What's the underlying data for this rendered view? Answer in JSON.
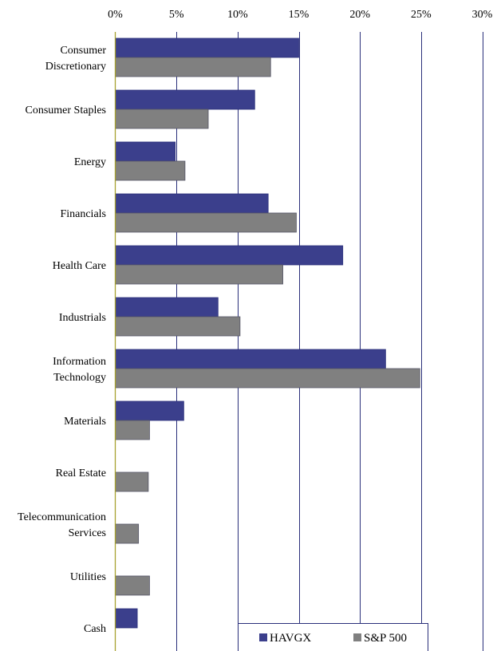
{
  "chart_data": {
    "type": "bar",
    "orientation": "horizontal",
    "categories": [
      [
        "Consumer",
        "Discretionary"
      ],
      [
        "Consumer Staples"
      ],
      [
        "Energy"
      ],
      [
        "Financials"
      ],
      [
        "Health Care"
      ],
      [
        "Industrials"
      ],
      [
        "Information",
        "Technology"
      ],
      [
        "Materials"
      ],
      [
        "Real Estate"
      ],
      [
        "Telecommunication",
        "Services"
      ],
      [
        "Utilities"
      ],
      [
        "Cash"
      ]
    ],
    "series": [
      {
        "name": "HAVGX",
        "color": "#3b3f8c",
        "values": [
          15.0,
          11.4,
          4.9,
          12.5,
          18.6,
          8.4,
          22.1,
          5.6,
          null,
          null,
          null,
          1.8
        ]
      },
      {
        "name": "S&P 500",
        "color": "#808080",
        "values": [
          12.7,
          7.6,
          5.7,
          14.8,
          13.7,
          10.2,
          24.9,
          2.8,
          2.7,
          1.9,
          2.8,
          null
        ]
      }
    ],
    "xlim": [
      0,
      30
    ],
    "xticks": [
      "0%",
      "5%",
      "10%",
      "15%",
      "20%",
      "25%",
      "30%"
    ],
    "x_axis_position": "top",
    "grid": true,
    "legend_position": "bottom-right"
  }
}
